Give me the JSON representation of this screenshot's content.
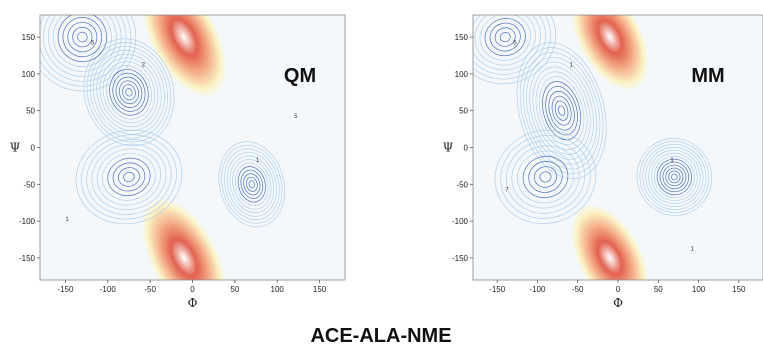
{
  "title": "ACE-ALA-NME",
  "chart_data": [
    {
      "type": "contour",
      "title": "QM",
      "xlabel": "Φ",
      "ylabel": "Ψ",
      "xlim": [
        -180,
        180
      ],
      "ylim": [
        -180,
        180
      ],
      "xticks": [
        -150,
        -100,
        -50,
        0,
        50,
        100,
        150
      ],
      "yticks": [
        -150,
        -100,
        -50,
        0,
        50,
        100,
        150
      ],
      "grid": false,
      "colors": {
        "low": "#3f63b3",
        "mid": "#a9cbe8",
        "high": "#e2614f"
      },
      "wells": [
        {
          "phi": -75,
          "psi": 75,
          "depth": 1.0,
          "sx": 25,
          "sy": 35
        },
        {
          "phi": -130,
          "psi": 150,
          "depth": 0.7,
          "sx": 30,
          "sy": 35
        },
        {
          "phi": 70,
          "psi": -50,
          "depth": 0.8,
          "sx": 18,
          "sy": 28
        },
        {
          "phi": -75,
          "psi": -40,
          "depth": 0.5,
          "sx": 30,
          "sy": 30
        }
      ],
      "peaks": [
        {
          "phi": -10,
          "psi": 150,
          "height": 1.0,
          "sx": 18,
          "sy": 45
        },
        {
          "phi": -10,
          "psi": -150,
          "height": 1.0,
          "sx": 18,
          "sy": 45
        }
      ],
      "contour_labels": [
        {
          "phi": -120,
          "psi": 140,
          "text": "5"
        },
        {
          "phi": -60,
          "psi": 110,
          "text": "2"
        },
        {
          "phi": 75,
          "psi": -20,
          "text": "1"
        },
        {
          "phi": -150,
          "psi": -100,
          "text": "1"
        },
        {
          "phi": 120,
          "psi": 40,
          "text": "5"
        }
      ]
    },
    {
      "type": "contour",
      "title": "MM",
      "xlabel": "Φ",
      "ylabel": "Ψ",
      "xlim": [
        -180,
        180
      ],
      "ylim": [
        -180,
        180
      ],
      "xticks": [
        -150,
        -100,
        -50,
        0,
        50,
        100,
        150
      ],
      "yticks": [
        -150,
        -100,
        -50,
        0,
        50,
        100,
        150
      ],
      "grid": false,
      "colors": {
        "low": "#3f63b3",
        "mid": "#a9cbe8",
        "high": "#e2614f"
      },
      "wells": [
        {
          "phi": -70,
          "psi": 50,
          "depth": 1.0,
          "sx": 25,
          "sy": 45
        },
        {
          "phi": -140,
          "psi": 150,
          "depth": 0.6,
          "sx": 30,
          "sy": 30
        },
        {
          "phi": 70,
          "psi": -40,
          "depth": 0.9,
          "sx": 22,
          "sy": 25
        },
        {
          "phi": -90,
          "psi": -40,
          "depth": 0.4,
          "sx": 30,
          "sy": 30
        }
      ],
      "peaks": [
        {
          "phi": -10,
          "psi": 150,
          "height": 1.0,
          "sx": 18,
          "sy": 40
        },
        {
          "phi": -10,
          "psi": -150,
          "height": 1.0,
          "sx": 18,
          "sy": 40
        }
      ],
      "contour_labels": [
        {
          "phi": -130,
          "psi": 140,
          "text": "5"
        },
        {
          "phi": -60,
          "psi": 110,
          "text": "1"
        },
        {
          "phi": 65,
          "psi": -20,
          "text": "1"
        },
        {
          "phi": 90,
          "psi": -140,
          "text": "1"
        },
        {
          "phi": -140,
          "psi": -60,
          "text": "7"
        }
      ]
    }
  ]
}
